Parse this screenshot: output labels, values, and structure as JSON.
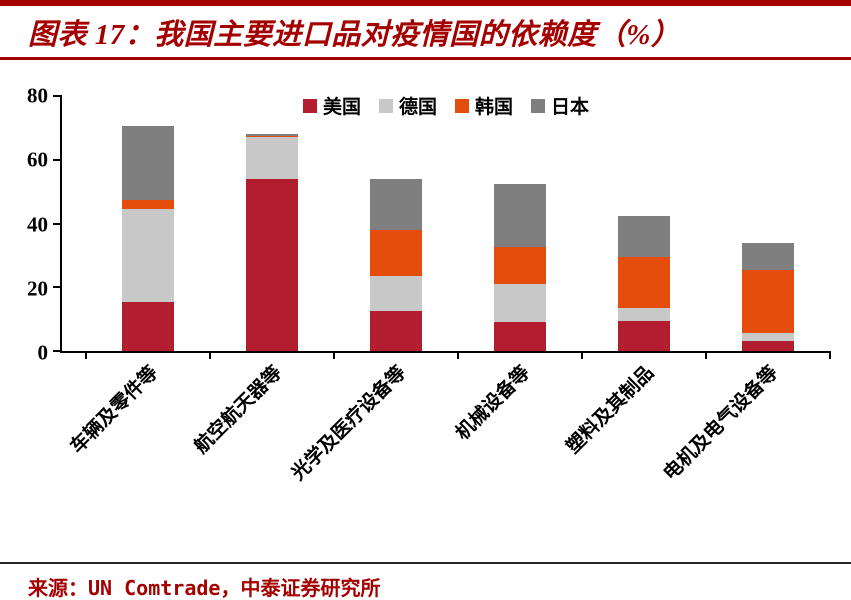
{
  "header": {
    "title": "图表 17：我国主要进口品对疫情国的依赖度（%）"
  },
  "footer": {
    "source": "来源：UN Comtrade，中泰证券研究所"
  },
  "theme": {
    "accent_red": "#A40000",
    "axis_color": "#000000",
    "bottom_rule_color": "#262626"
  },
  "chart_data": {
    "type": "bar",
    "stacked": true,
    "title": "图表 17：我国主要进口品对疫情国的依赖度（%）",
    "categories": [
      "车辆及零件等",
      "航空航天器等",
      "光学及医疗设备等",
      "机械设备等",
      "塑料及其制品",
      "电机及电气设备等"
    ],
    "series": [
      {
        "name": "美国",
        "color": "#B21E2F",
        "values": [
          15.5,
          54,
          12.5,
          9,
          9.5,
          3
        ]
      },
      {
        "name": "德国",
        "color": "#C8C8C8",
        "values": [
          29,
          13,
          11,
          12,
          4,
          2.5
        ]
      },
      {
        "name": "韩国",
        "color": "#E54D0C",
        "values": [
          3,
          0.5,
          14.5,
          11.5,
          16,
          20
        ]
      },
      {
        "name": "日本",
        "color": "#7F7F7F",
        "values": [
          23,
          0.5,
          16,
          20,
          13,
          8.5
        ]
      }
    ],
    "totals": [
      70.5,
      68,
      54,
      52.5,
      42.5,
      34
    ],
    "ylim": [
      0,
      80
    ],
    "yticks": [
      0,
      20,
      40,
      60,
      80
    ],
    "legend_position": "top-center",
    "grid": false,
    "source": "UN Comtrade，中泰证券研究所"
  }
}
